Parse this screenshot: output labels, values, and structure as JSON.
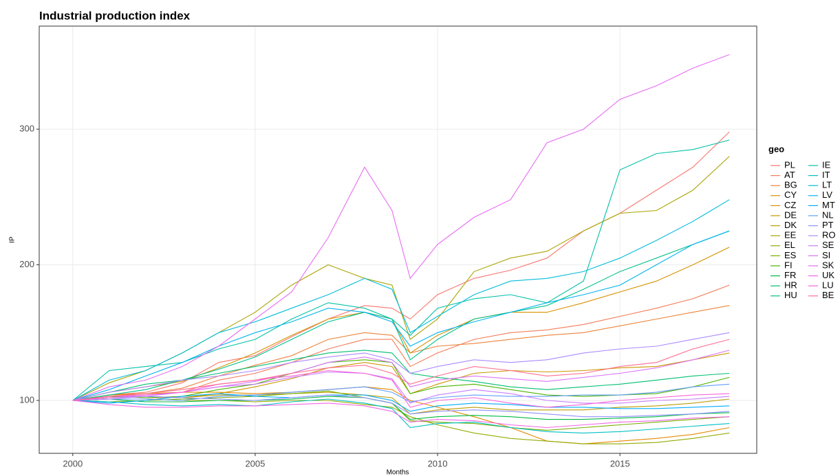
{
  "chart_data": {
    "type": "line",
    "title": "Industrial production index",
    "x_label": "Months",
    "y_label": "IP",
    "legend_title": "geo",
    "legend_position": "right",
    "grid": true,
    "xlim": [
      1999.08,
      2018.75
    ],
    "xticks": [
      2000,
      2005,
      2010,
      2015
    ],
    "ylim": [
      61,
      376
    ],
    "yticks": [
      100,
      200,
      300
    ],
    "x": [
      2000,
      2001,
      2002,
      2003,
      2004,
      2005,
      2006,
      2007,
      2008,
      2008.75,
      2009.25,
      2010,
      2011,
      2012,
      2013,
      2014,
      2015,
      2016,
      2017,
      2018
    ],
    "series": [
      {
        "name": "PL",
        "color": "#F8766D",
        "values": [
          100,
          104,
          106,
          113,
          128,
          133,
          147,
          160,
          170,
          168,
          160,
          178,
          190,
          196,
          205,
          225,
          238,
          255,
          272,
          298
        ]
      },
      {
        "name": "AT",
        "color": "#F37B59",
        "values": [
          100,
          103,
          104,
          106,
          115,
          120,
          128,
          138,
          145,
          145,
          125,
          135,
          145,
          150,
          152,
          156,
          162,
          168,
          175,
          185
        ]
      },
      {
        "name": "BG",
        "color": "#EC8239",
        "values": [
          100,
          104,
          105,
          109,
          118,
          126,
          133,
          145,
          150,
          148,
          135,
          140,
          142,
          145,
          148,
          150,
          155,
          160,
          165,
          170
        ]
      },
      {
        "name": "CY",
        "color": "#E38900",
        "values": [
          100,
          104,
          105,
          106,
          106,
          105,
          106,
          108,
          110,
          108,
          100,
          95,
          88,
          80,
          70,
          68,
          70,
          72,
          75,
          80
        ]
      },
      {
        "name": "CZ",
        "color": "#D89000",
        "values": [
          100,
          106,
          110,
          114,
          124,
          135,
          148,
          160,
          165,
          160,
          135,
          148,
          160,
          165,
          165,
          172,
          180,
          188,
          200,
          213
        ]
      },
      {
        "name": "DE",
        "color": "#CB9600",
        "values": [
          100,
          103,
          102,
          102,
          105,
          110,
          116,
          124,
          128,
          125,
          105,
          112,
          120,
          122,
          121,
          122,
          124,
          125,
          130,
          135
        ]
      },
      {
        "name": "DK",
        "color": "#BB9D00",
        "values": [
          100,
          102,
          103,
          102,
          104,
          104,
          105,
          106,
          104,
          102,
          90,
          93,
          95,
          93,
          93,
          93,
          95,
          96,
          98,
          101
        ]
      },
      {
        "name": "EE",
        "color": "#A9A400",
        "values": [
          100,
          113,
          122,
          135,
          150,
          165,
          185,
          200,
          190,
          185,
          145,
          160,
          195,
          205,
          210,
          225,
          238,
          240,
          255,
          280
        ]
      },
      {
        "name": "EL",
        "color": "#93AA00",
        "values": [
          100,
          101,
          101,
          100,
          100,
          99,
          100,
          100,
          97,
          95,
          88,
          82,
          76,
          72,
          70,
          68,
          68,
          69,
          72,
          76
        ]
      },
      {
        "name": "ES",
        "color": "#77AF00",
        "values": [
          100,
          99,
          100,
          101,
          102,
          103,
          105,
          107,
          102,
          98,
          85,
          84,
          83,
          80,
          78,
          80,
          82,
          84,
          86,
          88
        ]
      },
      {
        "name": "FI",
        "color": "#4CB400",
        "values": [
          100,
          103,
          102,
          103,
          108,
          112,
          120,
          128,
          130,
          128,
          105,
          110,
          112,
          108,
          104,
          103,
          104,
          105,
          110,
          117
        ]
      },
      {
        "name": "FR",
        "color": "#00BA42",
        "values": [
          100,
          101,
          99,
          99,
          100,
          100,
          101,
          103,
          102,
          98,
          86,
          88,
          89,
          88,
          86,
          86,
          87,
          88,
          90,
          91
        ]
      },
      {
        "name": "HR",
        "color": "#00BE70",
        "values": [
          100,
          106,
          112,
          115,
          120,
          125,
          130,
          135,
          137,
          135,
          120,
          117,
          114,
          110,
          108,
          110,
          112,
          115,
          118,
          120
        ]
      },
      {
        "name": "HU",
        "color": "#00C08B",
        "values": [
          100,
          104,
          108,
          115,
          123,
          132,
          145,
          158,
          165,
          160,
          130,
          145,
          160,
          165,
          170,
          182,
          195,
          205,
          215,
          225
        ]
      },
      {
        "name": "IE",
        "color": "#00C1A7",
        "values": [
          100,
          122,
          125,
          128,
          138,
          145,
          160,
          172,
          168,
          160,
          148,
          168,
          175,
          178,
          172,
          188,
          270,
          282,
          285,
          292
        ]
      },
      {
        "name": "IT",
        "color": "#00BFC4",
        "values": [
          100,
          99,
          97,
          96,
          97,
          96,
          99,
          101,
          98,
          94,
          80,
          83,
          84,
          80,
          77,
          76,
          77,
          79,
          81,
          83
        ]
      },
      {
        "name": "LT",
        "color": "#00BBDA",
        "values": [
          100,
          115,
          122,
          135,
          150,
          158,
          168,
          178,
          190,
          182,
          150,
          162,
          178,
          188,
          190,
          195,
          205,
          218,
          232,
          248
        ]
      },
      {
        "name": "LV",
        "color": "#00B4EF",
        "values": [
          100,
          108,
          118,
          128,
          140,
          150,
          158,
          168,
          165,
          158,
          140,
          150,
          158,
          165,
          172,
          178,
          185,
          200,
          215,
          225
        ]
      },
      {
        "name": "MT",
        "color": "#00ABFD",
        "values": [
          100,
          98,
          100,
          103,
          105,
          103,
          102,
          104,
          104,
          100,
          92,
          96,
          98,
          97,
          95,
          95,
          94,
          94,
          95,
          96
        ]
      },
      {
        "name": "NL",
        "color": "#619CFF",
        "values": [
          100,
          101,
          101,
          100,
          103,
          104,
          106,
          108,
          110,
          106,
          99,
          102,
          104,
          103,
          103,
          104,
          104,
          106,
          110,
          112
        ]
      },
      {
        "name": "PT",
        "color": "#8F91FF",
        "values": [
          100,
          102,
          103,
          102,
          101,
          100,
          102,
          104,
          102,
          98,
          90,
          92,
          93,
          92,
          90,
          88,
          88,
          89,
          90,
          92
        ]
      },
      {
        "name": "RO",
        "color": "#AC88FF",
        "values": [
          100,
          106,
          110,
          115,
          118,
          122,
          128,
          132,
          135,
          130,
          120,
          125,
          130,
          128,
          130,
          135,
          138,
          140,
          145,
          150
        ]
      },
      {
        "name": "SE",
        "color": "#C77CFF",
        "values": [
          100,
          101,
          103,
          106,
          110,
          112,
          117,
          121,
          120,
          116,
          98,
          104,
          108,
          105,
          100,
          98,
          98,
          100,
          101,
          103
        ]
      },
      {
        "name": "SI",
        "color": "#DB72FB",
        "values": [
          100,
          103,
          104,
          106,
          110,
          114,
          120,
          128,
          132,
          128,
          110,
          115,
          118,
          116,
          114,
          117,
          120,
          124,
          130,
          137
        ]
      },
      {
        "name": "SK",
        "color": "#E76BF3",
        "values": [
          100,
          110,
          115,
          125,
          140,
          160,
          180,
          220,
          272,
          240,
          190,
          215,
          235,
          248,
          290,
          300,
          322,
          332,
          345,
          355
        ]
      },
      {
        "name": "UK",
        "color": "#F365E6",
        "values": [
          100,
          97,
          95,
          95,
          96,
          96,
          97,
          98,
          96,
          92,
          84,
          86,
          85,
          82,
          80,
          82,
          84,
          85,
          87,
          88
        ]
      },
      {
        "name": "LU",
        "color": "#FA62D9",
        "values": [
          100,
          102,
          104,
          106,
          112,
          115,
          118,
          122,
          120,
          115,
          95,
          100,
          102,
          98,
          95,
          97,
          100,
          102,
          104,
          105
        ]
      },
      {
        "name": "BE",
        "color": "#FF6C91",
        "values": [
          100,
          103,
          105,
          108,
          112,
          115,
          120,
          124,
          126,
          120,
          112,
          118,
          125,
          122,
          118,
          120,
          125,
          128,
          138,
          145
        ]
      }
    ]
  }
}
